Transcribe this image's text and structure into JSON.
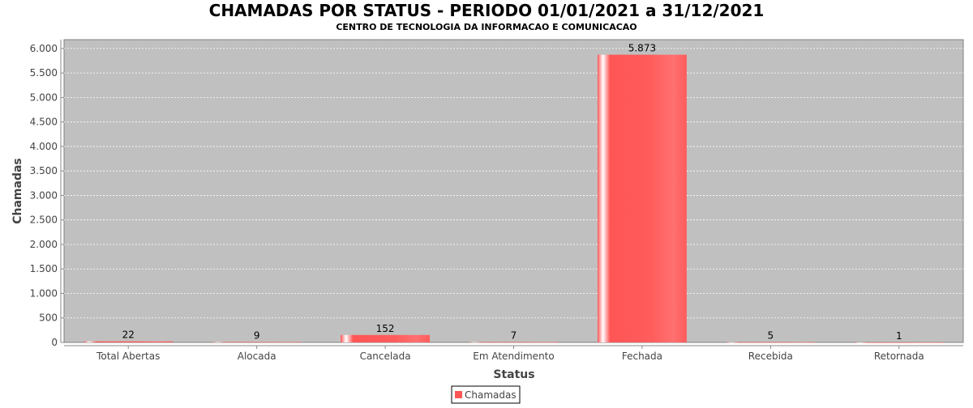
{
  "chart_data": {
    "type": "bar",
    "title": "CHAMADAS POR STATUS - PERIODO 01/01/2021 a 31/12/2021",
    "subtitle": "CENTRO DE TECNOLOGIA DA INFORMACAO E COMUNICACAO",
    "xlabel": "Status",
    "ylabel": "Chamadas",
    "categories": [
      "Total Abertas",
      "Alocada",
      "Cancelada",
      "Em Atendimento",
      "Fechada",
      "Recebida",
      "Retornada"
    ],
    "series": [
      {
        "name": "Chamadas",
        "values": [
          22,
          9,
          152,
          7,
          5873,
          5,
          1
        ],
        "color": "#ff5555"
      }
    ],
    "data_labels": [
      "22",
      "9",
      "152",
      "7",
      "5.873",
      "5",
      "1"
    ],
    "ylim": [
      0,
      6180
    ],
    "yticks": [
      0,
      500,
      1000,
      1500,
      2000,
      2500,
      3000,
      3500,
      4000,
      4500,
      5000,
      5500,
      6000
    ],
    "ytick_labels": [
      "0",
      "500",
      "1.000",
      "1.500",
      "2.000",
      "2.500",
      "3.000",
      "3.500",
      "4.000",
      "4.500",
      "5.000",
      "5.500",
      "6.000"
    ],
    "grid": true,
    "legend": "bottom",
    "plot_background": "#c0c0c0"
  }
}
